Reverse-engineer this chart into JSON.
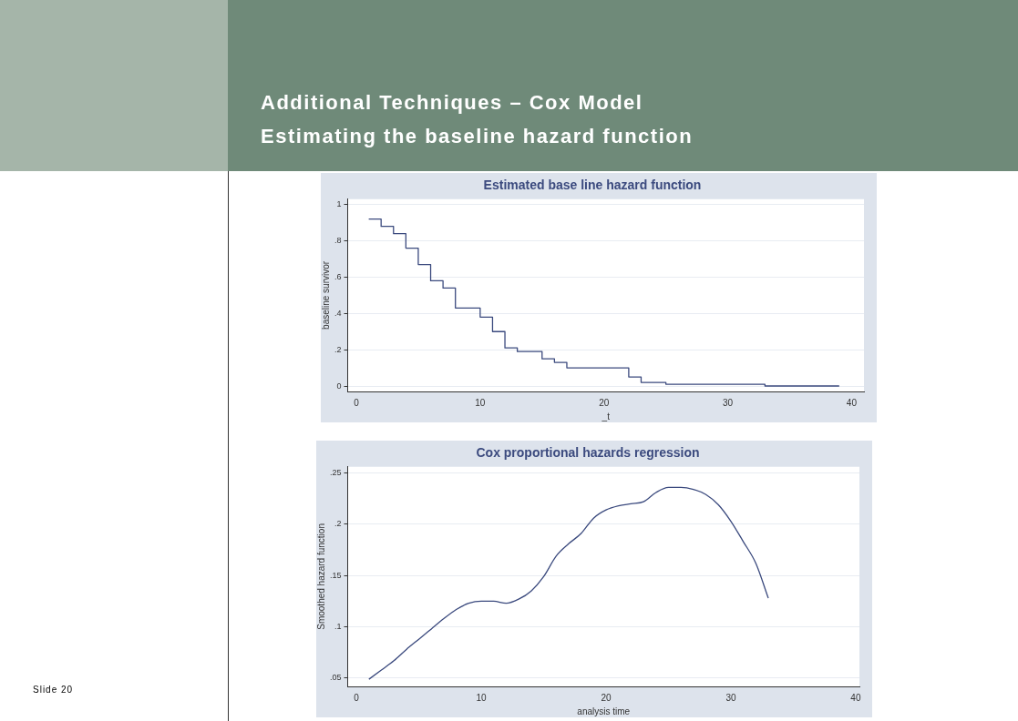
{
  "chart_data": [
    {
      "type": "other",
      "title": "Additional Techniques – Cox Model",
      "subtitle": "Estimating the baseline hazard function",
      "annotations": [
        "Slide 20"
      ]
    },
    {
      "type": "step",
      "title": "Estimated base line hazard function",
      "xlabel": "_t",
      "ylabel": "baseline survivor",
      "x": [
        1,
        2,
        3,
        4,
        5,
        6,
        7,
        8,
        10,
        11,
        12,
        13,
        15,
        16,
        17,
        22,
        23,
        25,
        33,
        39
      ],
      "series": [
        {
          "color": "#3b4a7e",
          "values": [
            0.92,
            0.88,
            0.84,
            0.76,
            0.67,
            0.58,
            0.54,
            0.43,
            0.38,
            0.3,
            0.21,
            0.19,
            0.15,
            0.13,
            0.1,
            0.05,
            0.02,
            0.01,
            0,
            0
          ]
        }
      ],
      "xlim": [
        -0.7,
        41
      ],
      "ylim": [
        -0.03,
        1.03
      ],
      "xticks": [
        0,
        10,
        20,
        30,
        40
      ],
      "yticks": [
        0,
        {
          "value": 0.2,
          "label": ".2"
        },
        {
          "value": 0.4,
          "label": ".4"
        },
        {
          "value": 0.6,
          "label": ".6"
        },
        {
          "value": 0.8,
          "label": ".8"
        },
        1
      ],
      "grid": "y"
    },
    {
      "type": "line",
      "title": "Cox proportional hazards regression",
      "xlabel": "analysis time",
      "ylabel": "Smoothed hazard function",
      "x": [
        1,
        2,
        3,
        4,
        5,
        6,
        7,
        8,
        9,
        10,
        11,
        12,
        13,
        14,
        15,
        16,
        17,
        18,
        19,
        20,
        21,
        22,
        23,
        24,
        25,
        26,
        27,
        28,
        29,
        30,
        31,
        32,
        33
      ],
      "series": [
        {
          "color": "#3b4a7e",
          "values": [
            0.049,
            0.058,
            0.067,
            0.078,
            0.088,
            0.098,
            0.108,
            0.117,
            0.123,
            0.125,
            0.125,
            0.123,
            0.127,
            0.135,
            0.149,
            0.169,
            0.181,
            0.191,
            0.206,
            0.214,
            0.218,
            0.22,
            0.222,
            0.231,
            0.236,
            0.236,
            0.234,
            0.229,
            0.219,
            0.203,
            0.183,
            0.162,
            0.128
          ]
        }
      ],
      "xlim": [
        -0.7,
        40.3
      ],
      "ylim": [
        0.042,
        0.256
      ],
      "xticks": [
        0,
        10,
        20,
        30,
        40
      ],
      "yticks": [
        {
          "value": 0.05,
          "label": ".05"
        },
        {
          "value": 0.1,
          "label": ".1"
        },
        {
          "value": 0.15,
          "label": ".15"
        },
        {
          "value": 0.2,
          "label": ".2"
        },
        {
          "value": 0.25,
          "label": ".25"
        }
      ],
      "grid": "y"
    }
  ]
}
